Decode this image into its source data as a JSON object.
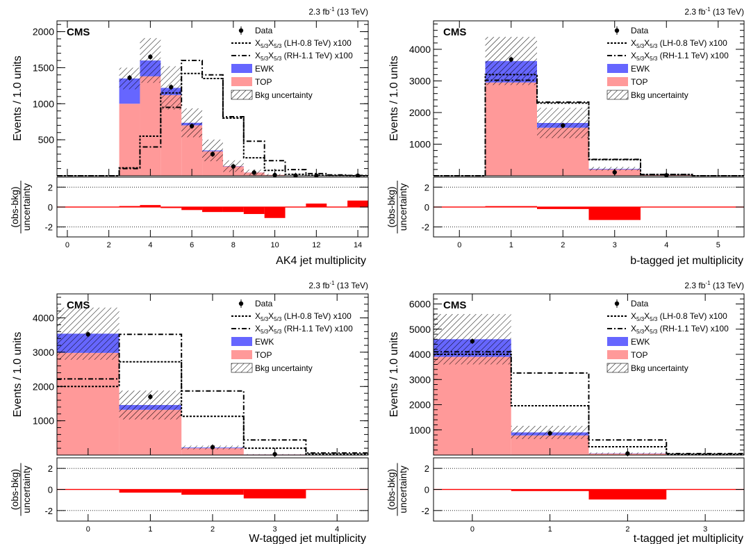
{
  "legend": {
    "data": "Data",
    "sig_lh": "X5/3X5/3 (LH-0.8 TeV) x100",
    "sig_lh_main": "X",
    "sig_lh_sub": "5/3",
    "sig_lh_main2": "X",
    "sig_lh_sub2": "5/3",
    "sig_lh_tail": " (LH-0.8 TeV) x100",
    "sig_rh": "X5/3X5/3 (RH-1.1 TeV) x100",
    "sig_rh_main": "X",
    "sig_rh_sub": "5/3",
    "sig_rh_main2": "X",
    "sig_rh_sub2": "5/3",
    "sig_rh_tail": " (RH-1.1 TeV) x100",
    "ewk": "EWK",
    "top": "TOP",
    "unc": "Bkg uncertainty"
  },
  "cms_label": "CMS",
  "lumi": "2.3 fb-1 (13 TeV)",
  "lumi_main": "2.3 fb",
  "lumi_sup": "-1",
  "lumi_tail": " (13 TeV)",
  "ylabel": "Events / 1.0 units",
  "ratio_ylabel_top": "(obs-bkg)",
  "ratio_ylabel_bottom": "uncertainty",
  "colors": {
    "top": "#ff9999",
    "ewk": "#6666ff",
    "ratio": "#ff0000"
  },
  "chart_data": [
    {
      "type": "bar",
      "xlabel": "AK4 jet multiplicity",
      "xrange": [
        -0.5,
        14.5
      ],
      "ylim": [
        0,
        2150
      ],
      "yticks": [
        500,
        1000,
        1500,
        2000
      ],
      "xticks": [
        0,
        2,
        4,
        6,
        8,
        10,
        12,
        14
      ],
      "bins": [
        0,
        1,
        2,
        3,
        4,
        5,
        6,
        7,
        8,
        9,
        10,
        11,
        12,
        13,
        14
      ],
      "top": [
        0,
        0,
        0,
        1000,
        1380,
        1120,
        700,
        340,
        130,
        45,
        12,
        4,
        1,
        0,
        0
      ],
      "ewk": [
        0,
        0,
        0,
        350,
        220,
        100,
        35,
        12,
        4,
        1,
        0,
        0,
        0,
        0,
        0
      ],
      "unc": [
        0,
        0,
        0,
        150,
        310,
        300,
        200,
        150,
        80,
        40,
        15,
        6,
        3,
        1,
        0
      ],
      "data": [
        null,
        null,
        null,
        1360,
        1650,
        1230,
        690,
        300,
        130,
        45,
        10,
        3,
        2,
        null,
        1
      ],
      "sig_lh": [
        0,
        0,
        0,
        110,
        550,
        1150,
        1420,
        1350,
        800,
        250,
        75,
        20,
        6,
        2,
        0
      ],
      "sig_rh": [
        0,
        0,
        0,
        100,
        400,
        950,
        1600,
        1400,
        820,
        480,
        210,
        85,
        30,
        12,
        5
      ],
      "ratio": [
        0,
        0,
        0,
        0.1,
        0.2,
        -0.1,
        -0.3,
        -0.5,
        -0.5,
        -0.7,
        -1.1,
        0,
        0.35,
        0,
        0.65
      ],
      "ratio_ylim": [
        -3,
        3
      ],
      "ratio_yticks": [
        -2,
        0,
        2
      ]
    },
    {
      "type": "bar",
      "xlabel": "b-tagged jet multiplicity",
      "xrange": [
        -0.5,
        5.5
      ],
      "ylim": [
        0,
        4900
      ],
      "yticks": [
        1000,
        2000,
        3000,
        4000
      ],
      "xticks": [
        0,
        1,
        2,
        3,
        4,
        5
      ],
      "bins": [
        0,
        1,
        2,
        3,
        4,
        5
      ],
      "top": [
        0,
        2950,
        1520,
        200,
        30,
        0
      ],
      "ewk": [
        0,
        680,
        150,
        20,
        3,
        0
      ],
      "unc": [
        0,
        760,
        480,
        60,
        10,
        0
      ],
      "data": [
        null,
        3680,
        1590,
        110,
        15,
        null
      ],
      "sig_lh": [
        0,
        3200,
        2300,
        510,
        40,
        0
      ],
      "sig_rh": [
        0,
        3020,
        2330,
        520,
        40,
        0
      ],
      "ratio": [
        0,
        0.05,
        -0.2,
        -1.3,
        -0.05,
        0
      ],
      "ratio_ylim": [
        -3,
        3
      ],
      "ratio_yticks": [
        -2,
        0,
        2
      ]
    },
    {
      "type": "bar",
      "xlabel": "W-tagged jet multiplicity",
      "xrange": [
        -0.5,
        4.5
      ],
      "ylim": [
        0,
        4700
      ],
      "yticks": [
        1000,
        2000,
        3000,
        4000
      ],
      "xticks": [
        0,
        1,
        2,
        3,
        4
      ],
      "bins": [
        0,
        1,
        2,
        3,
        4
      ],
      "top": [
        2980,
        1320,
        200,
        18,
        2
      ],
      "ewk": [
        560,
        140,
        20,
        2,
        0
      ],
      "unc": [
        760,
        420,
        55,
        6,
        1
      ],
      "data": [
        3520,
        1700,
        230,
        25,
        null
      ],
      "sig_lh": [
        2000,
        2720,
        1130,
        200,
        30
      ],
      "sig_rh": [
        2220,
        3520,
        1870,
        440,
        60
      ],
      "ratio": [
        -0.05,
        -0.3,
        -0.5,
        -0.85,
        -0.05
      ],
      "ratio_ylim": [
        -3,
        3
      ],
      "ratio_yticks": [
        -2,
        0,
        2
      ]
    },
    {
      "type": "bar",
      "xlabel": "t-tagged jet multiplicity",
      "xrange": [
        -0.5,
        3.5
      ],
      "ylim": [
        0,
        6400
      ],
      "yticks": [
        1000,
        2000,
        3000,
        4000,
        5000,
        6000
      ],
      "xticks": [
        0,
        1,
        2,
        3
      ],
      "bins": [
        0,
        1,
        2,
        3
      ],
      "top": [
        3900,
        780,
        60,
        2
      ],
      "ewk": [
        700,
        120,
        10,
        0
      ],
      "unc": [
        1000,
        260,
        30,
        1
      ],
      "data": [
        4520,
        870,
        60,
        null
      ],
      "sig_lh": [
        4000,
        1960,
        330,
        30
      ],
      "sig_rh": [
        4100,
        3260,
        600,
        60
      ],
      "ratio": [
        -0.05,
        -0.15,
        -0.95,
        0
      ],
      "ratio_ylim": [
        -3,
        3
      ],
      "ratio_yticks": [
        -2,
        0,
        2
      ]
    }
  ]
}
